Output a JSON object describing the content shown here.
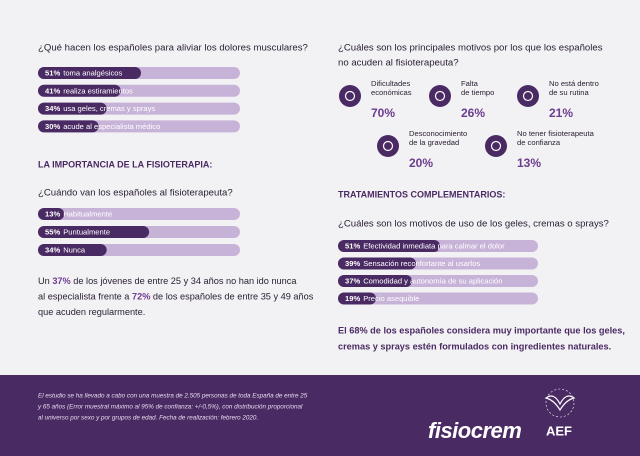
{
  "left": {
    "q1": {
      "title": "¿Qué hacen los españoles para aliviar los dolores musculares?",
      "items": [
        {
          "value": 51,
          "value_label": "51%",
          "label": "toma analgésicos"
        },
        {
          "value": 41,
          "value_label": "41%",
          "label": "realiza estiramientos"
        },
        {
          "value": 34,
          "value_label": "34%",
          "label": "usa geles, cremas y sprays"
        },
        {
          "value": 30,
          "value_label": "30%",
          "label": "acude al especialista médico"
        }
      ]
    },
    "section": "LA IMPORTANCIA DE LA FISIOTERAPIA:",
    "q2": {
      "title": "¿Cuándo van los españoles al fisioterapeuta?",
      "items": [
        {
          "value": 13,
          "value_label": "13%",
          "label": "Habitualmente"
        },
        {
          "value": 55,
          "value_label": "55%",
          "label": "Puntualmente"
        },
        {
          "value": 34,
          "value_label": "34%",
          "label": "Nunca"
        }
      ]
    },
    "paragraph": [
      [
        "Un ",
        "37%",
        " de los jóvenes de entre 25 y 34 años no han ido nunca"
      ],
      [
        "al especialista frente a ",
        "72%",
        " de los españoles de entre 35 y 49 años"
      ],
      [
        "que acuden regularmente."
      ]
    ]
  },
  "right": {
    "q3": {
      "title": [
        "¿Cuáles son los principales motivos por los que los españoles",
        "no acuden al fisioterapeuta?"
      ],
      "reasons": [
        {
          "label": [
            "Dificultades",
            "económicas"
          ],
          "value_label": "70%"
        },
        {
          "label": [
            "Falta",
            "de tiempo"
          ],
          "value_label": "26%"
        },
        {
          "label": [
            "No está dentro",
            "de su rutina"
          ],
          "value_label": "21%"
        },
        {
          "label": [
            "Desconocimiento",
            "de la gravedad"
          ],
          "value_label": "20%"
        },
        {
          "label": [
            "No tener fisioterapeuta",
            "de confianza"
          ],
          "value_label": "13%"
        }
      ]
    },
    "section": "TRATAMIENTOS COMPLEMENTARIOS:",
    "q4": {
      "title": "¿Cuáles son los motivos de uso de los geles, cremas o sprays?",
      "items": [
        {
          "value": 51,
          "value_label": "51%",
          "label": "Efectividad inmediata para calmar el dolor"
        },
        {
          "value": 39,
          "value_label": "39%",
          "label": "Sensación reconfortante al usarlos"
        },
        {
          "value": 37,
          "value_label": "37%",
          "label": "Comodidad y autonomía de su aplicación"
        },
        {
          "value": 19,
          "value_label": "19%",
          "label": "Precio asequible"
        }
      ]
    },
    "conclusion": [
      "El 68% de los españoles considera muy importante que los geles,",
      "cremas y sprays estén formulados con ingredientes naturales."
    ]
  },
  "footer": {
    "note": [
      "El estudio se ha llevado a cabo con una muestra de 2.505 personas de toda España de entre 25",
      "y 65 años (Error muestral máximo al 95% de confianza: +/-0,5%), con distribución proporcional",
      "al universo por sexo y por grupos de edad. Fecha de realización: febrero 2020."
    ],
    "logo1": "fisiocrem",
    "logo2": "AEF"
  }
}
